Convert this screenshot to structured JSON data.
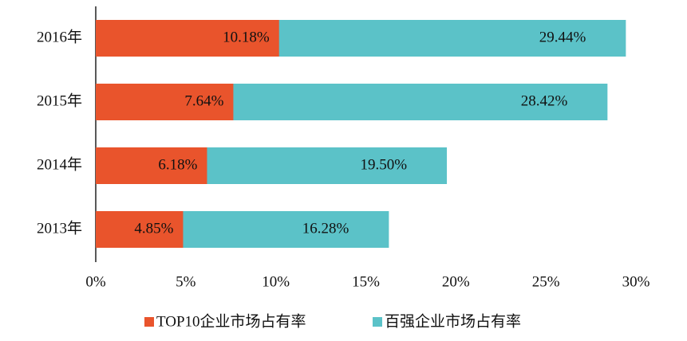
{
  "chart_data": {
    "type": "overlap-bar",
    "orientation": "horizontal",
    "categories": [
      "2016年",
      "2015年",
      "2014年",
      "2013年"
    ],
    "series": [
      {
        "name": "TOP10企业市场占有率",
        "color": "#e9542c",
        "values": [
          10.18,
          7.64,
          6.18,
          4.85
        ],
        "value_labels": [
          "10.18%",
          "7.64%",
          "6.18%",
          "4.85%"
        ]
      },
      {
        "name": "百强企业市场占有率",
        "color": "#5bc2c8",
        "values": [
          29.44,
          28.42,
          19.5,
          16.28
        ],
        "value_labels": [
          "29.44%",
          "28.42%",
          "19.50%",
          "16.28%"
        ]
      }
    ],
    "xlim": [
      0,
      30
    ],
    "xticks": [
      {
        "value": 0,
        "label": "0%"
      },
      {
        "value": 5,
        "label": "5%"
      },
      {
        "value": 10,
        "label": "10%"
      },
      {
        "value": 15,
        "label": "15%"
      },
      {
        "value": 20,
        "label": "20%"
      },
      {
        "value": 25,
        "label": "25%"
      },
      {
        "value": 30,
        "label": "30%"
      }
    ],
    "grid": false,
    "legend": "bottom"
  }
}
